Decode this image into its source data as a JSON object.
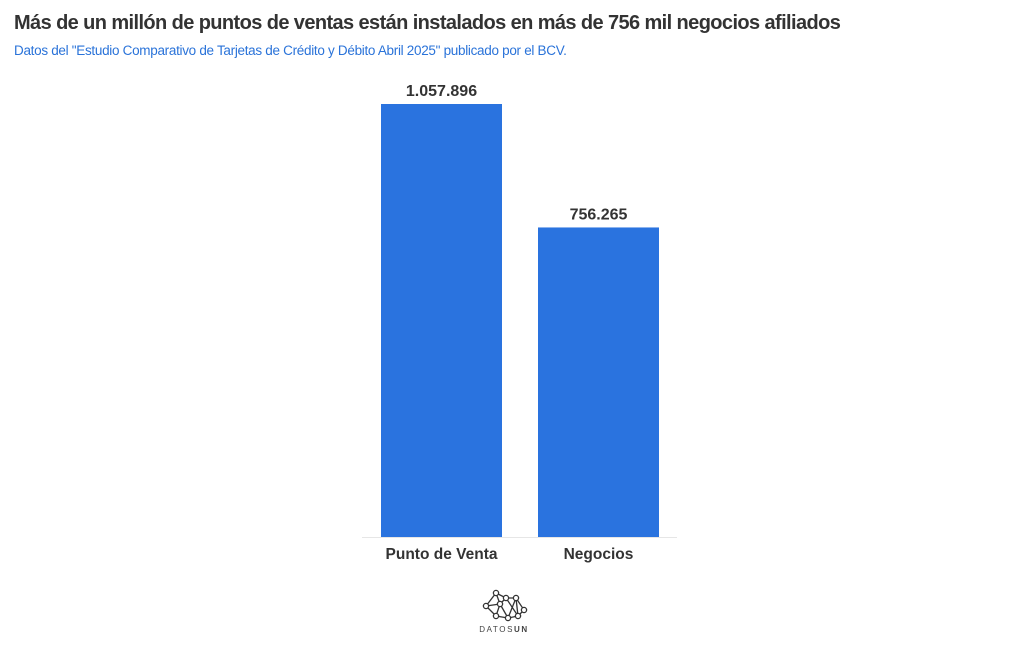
{
  "title": "Más de un millón de puntos de ventas están instalados en más de 756 mil negocios afiliados",
  "subtitle": "Datos del \"Estudio Comparativo de Tarjetas de Crédito y Débito Abril 2025\" publicado por el BCV.",
  "logo": {
    "text_a": "DATOS",
    "text_b": "UN"
  },
  "chart_data": {
    "type": "bar",
    "categories": [
      "Punto de Venta",
      "Negocios"
    ],
    "values": [
      1057896,
      756265
    ],
    "value_labels": [
      "1.057.896",
      "756.265"
    ],
    "title": "Más de un millón de puntos de ventas están instalados en más de 756 mil negocios afiliados",
    "xlabel": "",
    "ylabel": "",
    "ylim": [
      0,
      1057896
    ],
    "grid": false,
    "bar_color": "#2a73df"
  }
}
